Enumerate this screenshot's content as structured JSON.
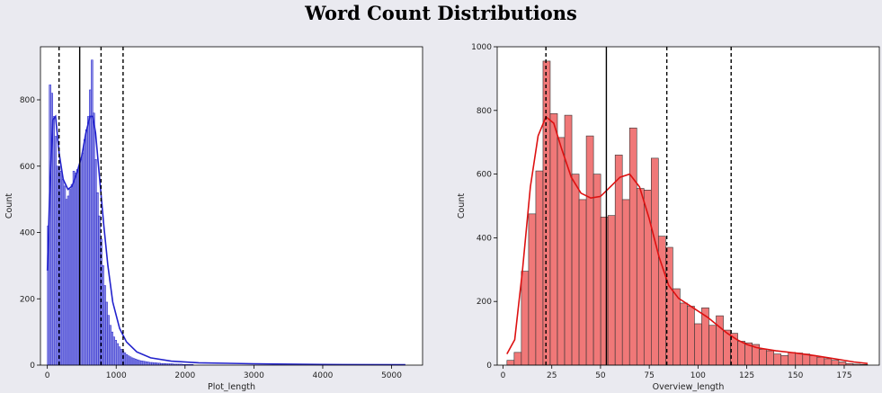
{
  "title": "Word Count Distributions",
  "chart_data": [
    {
      "type": "histogram",
      "xlabel": "Plot_length",
      "ylabel": "Count",
      "xlim": [
        -100,
        5450
      ],
      "ylim": [
        0,
        960
      ],
      "xticks": [
        0,
        1000,
        2000,
        3000,
        4000,
        5000
      ],
      "yticks": [
        0,
        200,
        400,
        600,
        800
      ],
      "color": "#2222cc",
      "fill": "#7a7ae0",
      "bin_start": 0,
      "bin_width": 26.5,
      "counts": [
        420,
        845,
        820,
        750,
        690,
        600,
        600,
        585,
        560,
        540,
        500,
        510,
        530,
        545,
        585,
        580,
        590,
        600,
        620,
        640,
        680,
        710,
        750,
        830,
        920,
        760,
        620,
        520,
        450,
        380,
        300,
        240,
        190,
        150,
        120,
        100,
        85,
        75,
        65,
        55,
        48,
        42,
        37,
        32,
        28,
        25,
        22,
        20,
        18,
        16,
        14,
        13,
        12,
        11,
        10,
        9,
        8,
        8,
        7,
        7,
        6,
        6,
        5,
        5,
        5,
        4,
        4,
        4,
        4,
        3,
        3,
        3,
        3,
        3,
        2,
        2,
        2,
        2,
        2,
        2
      ],
      "kde": [
        [
          0,
          285
        ],
        [
          40,
          560
        ],
        [
          80,
          740
        ],
        [
          120,
          750
        ],
        [
          170,
          640
        ],
        [
          230,
          560
        ],
        [
          300,
          530
        ],
        [
          360,
          540
        ],
        [
          430,
          580
        ],
        [
          500,
          630
        ],
        [
          560,
          700
        ],
        [
          620,
          750
        ],
        [
          660,
          750
        ],
        [
          700,
          700
        ],
        [
          760,
          560
        ],
        [
          820,
          420
        ],
        [
          880,
          300
        ],
        [
          950,
          190
        ],
        [
          1050,
          110
        ],
        [
          1150,
          70
        ],
        [
          1300,
          40
        ],
        [
          1500,
          22
        ],
        [
          1800,
          12
        ],
        [
          2200,
          7
        ],
        [
          3000,
          4
        ],
        [
          4000,
          2
        ],
        [
          5200,
          1
        ]
      ],
      "vlines": [
        {
          "x": 170,
          "style": "dashed"
        },
        {
          "x": 470,
          "style": "solid"
        },
        {
          "x": 780,
          "style": "dashed"
        },
        {
          "x": 1100,
          "style": "dashed"
        }
      ]
    },
    {
      "type": "histogram",
      "xlabel": "Overview_length",
      "ylabel": "Count",
      "xlim": [
        -3,
        193
      ],
      "ylim": [
        0,
        1000
      ],
      "xticks": [
        0,
        25,
        50,
        75,
        100,
        125,
        150,
        175
      ],
      "yticks": [
        0,
        200,
        400,
        600,
        800,
        1000
      ],
      "color": "#dd1111",
      "fill": "#f07878",
      "bin_start": 2,
      "bin_width": 3.7,
      "counts": [
        15,
        40,
        295,
        475,
        610,
        955,
        790,
        715,
        785,
        600,
        520,
        720,
        600,
        465,
        470,
        660,
        520,
        745,
        555,
        550,
        650,
        405,
        370,
        240,
        195,
        185,
        130,
        180,
        125,
        155,
        110,
        100,
        75,
        70,
        65,
        50,
        45,
        35,
        30,
        40,
        38,
        35,
        30,
        25,
        20,
        15,
        10,
        5,
        3,
        2
      ],
      "kde": [
        [
          2,
          35
        ],
        [
          6,
          80
        ],
        [
          10,
          300
        ],
        [
          14,
          560
        ],
        [
          18,
          720
        ],
        [
          22,
          780
        ],
        [
          26,
          760
        ],
        [
          30,
          680
        ],
        [
          35,
          590
        ],
        [
          40,
          540
        ],
        [
          45,
          525
        ],
        [
          50,
          530
        ],
        [
          55,
          560
        ],
        [
          60,
          590
        ],
        [
          65,
          600
        ],
        [
          70,
          560
        ],
        [
          75,
          460
        ],
        [
          80,
          340
        ],
        [
          85,
          250
        ],
        [
          90,
          210
        ],
        [
          95,
          190
        ],
        [
          100,
          170
        ],
        [
          105,
          150
        ],
        [
          110,
          125
        ],
        [
          115,
          100
        ],
        [
          120,
          80
        ],
        [
          125,
          65
        ],
        [
          130,
          55
        ],
        [
          140,
          45
        ],
        [
          150,
          38
        ],
        [
          160,
          30
        ],
        [
          170,
          20
        ],
        [
          180,
          10
        ],
        [
          187,
          5
        ]
      ],
      "vlines": [
        {
          "x": 22,
          "style": "dashed"
        },
        {
          "x": 53,
          "style": "solid"
        },
        {
          "x": 84,
          "style": "dashed"
        },
        {
          "x": 117,
          "style": "dashed"
        }
      ]
    }
  ]
}
